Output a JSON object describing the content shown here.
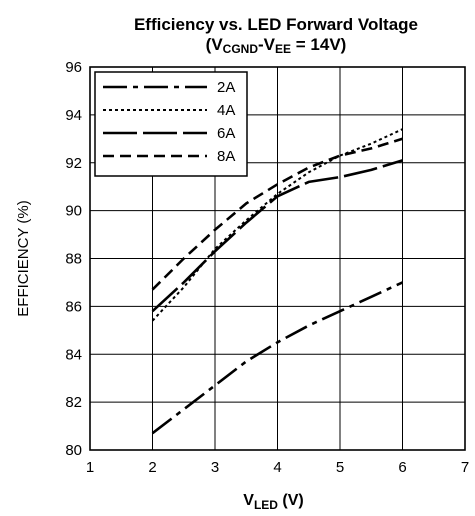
{
  "chart_data": {
    "type": "line",
    "title_main": "Efficiency vs. LED Forward Voltage",
    "subtitle": {
      "open": "(V",
      "sub1": "CGND",
      "mid": "-V",
      "sub2": "EE",
      "close": " = 14V)"
    },
    "xlabel": {
      "main": "V",
      "sub": "LED",
      "unit": " (V)"
    },
    "ylabel": "EFFICIENCY (%)",
    "xlim": [
      1,
      7
    ],
    "ylim": [
      80,
      96
    ],
    "xticks": [
      "1",
      "2",
      "3",
      "4",
      "5",
      "6",
      "7"
    ],
    "yticks": [
      "80",
      "82",
      "84",
      "86",
      "88",
      "90",
      "92",
      "94",
      "96"
    ],
    "grid": true,
    "legend_position": "top-left",
    "series": [
      {
        "name": "2A",
        "dash": "dash-dot",
        "x": [
          2,
          2.5,
          3,
          3.5,
          4,
          4.5,
          5,
          5.5,
          6
        ],
        "y": [
          80.7,
          81.7,
          82.7,
          83.7,
          84.5,
          85.2,
          85.8,
          86.4,
          87.0
        ]
      },
      {
        "name": "4A",
        "dash": "dotted",
        "x": [
          2,
          2.5,
          3,
          3.5,
          4,
          4.5,
          5,
          5.5,
          6
        ],
        "y": [
          85.4,
          86.8,
          88.4,
          89.6,
          90.7,
          91.6,
          92.3,
          92.8,
          93.4
        ]
      },
      {
        "name": "6A",
        "dash": "long-dash",
        "x": [
          2,
          2.5,
          3,
          3.5,
          4,
          4.5,
          5,
          5.5,
          6
        ],
        "y": [
          85.8,
          87.0,
          88.3,
          89.5,
          90.6,
          91.2,
          91.4,
          91.7,
          92.1
        ]
      },
      {
        "name": "8A",
        "dash": "dashed",
        "x": [
          2,
          2.5,
          3,
          3.5,
          4,
          4.5,
          5,
          5.5,
          6
        ],
        "y": [
          86.7,
          88.0,
          89.2,
          90.3,
          91.1,
          91.8,
          92.3,
          92.6,
          93.0
        ]
      }
    ]
  }
}
